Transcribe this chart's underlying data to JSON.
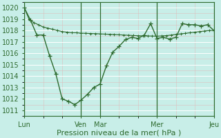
{
  "bg_color": "#c8eee8",
  "grid_major_color": "#ffffff",
  "grid_minor_color": "#ddbebe",
  "line_color": "#2d6a2d",
  "title": "",
  "xlabel": "Pression niveau de la mer( hPa )",
  "xlim": [
    0,
    120
  ],
  "ylim": [
    1010.5,
    1020.5
  ],
  "yticks": [
    1011,
    1012,
    1013,
    1014,
    1015,
    1016,
    1017,
    1018,
    1019,
    1020
  ],
  "xtick_positions": [
    0,
    36,
    48,
    84,
    120
  ],
  "xtick_labels": [
    "Lun",
    "Ven",
    "Mar",
    "Mer",
    "Jeu"
  ],
  "vline_positions": [
    0,
    36,
    48,
    84,
    120
  ],
  "series1_x": [
    0,
    3,
    6,
    9,
    12,
    15,
    18,
    21,
    24,
    27,
    30,
    33,
    36,
    39,
    42,
    45,
    48,
    51,
    54,
    57,
    60,
    63,
    66,
    69,
    72,
    75,
    78,
    81,
    84,
    87,
    90,
    93,
    96,
    99,
    102,
    105,
    108,
    111,
    114,
    117,
    120
  ],
  "series1_y": [
    1020.0,
    1019.0,
    1018.7,
    1018.5,
    1018.3,
    1018.2,
    1018.1,
    1018.0,
    1017.9,
    1017.85,
    1017.8,
    1017.8,
    1017.76,
    1017.75,
    1017.73,
    1017.72,
    1017.7,
    1017.68,
    1017.66,
    1017.64,
    1017.62,
    1017.6,
    1017.58,
    1017.56,
    1017.54,
    1017.53,
    1017.52,
    1017.51,
    1017.5,
    1017.52,
    1017.55,
    1017.6,
    1017.65,
    1017.7,
    1017.75,
    1017.8,
    1017.85,
    1017.9,
    1017.95,
    1018.0,
    1018.0
  ],
  "series2_x": [
    0,
    4,
    8,
    12,
    16,
    20,
    24,
    28,
    32,
    36,
    40,
    44,
    48,
    52,
    56,
    60,
    64,
    68,
    72,
    76,
    80,
    84,
    88,
    92,
    96,
    100,
    104,
    108,
    112,
    116,
    120
  ],
  "series2_y": [
    1020.0,
    1018.9,
    1017.6,
    1017.6,
    1015.8,
    1014.2,
    1012.0,
    1011.8,
    1011.5,
    1011.9,
    1012.4,
    1013.0,
    1013.3,
    1014.9,
    1016.1,
    1016.6,
    1017.2,
    1017.4,
    1017.3,
    1017.6,
    1018.6,
    1017.3,
    1017.4,
    1017.25,
    1017.4,
    1018.6,
    1018.5,
    1018.5,
    1018.4,
    1018.5,
    1018.0
  ]
}
